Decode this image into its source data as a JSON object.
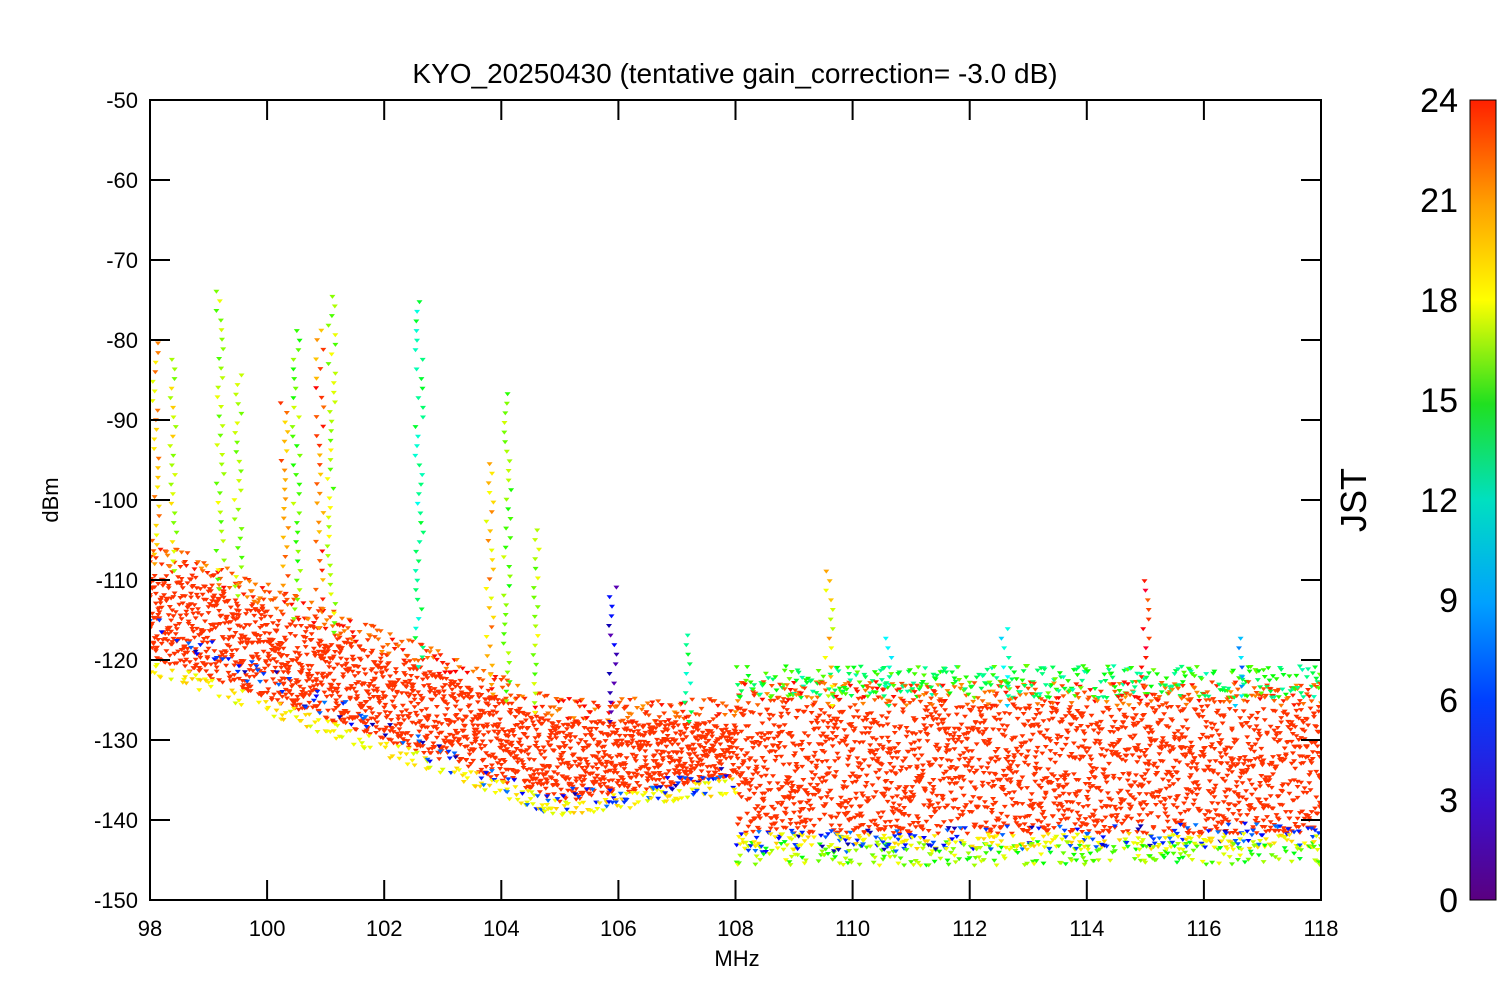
{
  "chart_data": {
    "type": "scatter",
    "title": "KYO_20250430 (tentative gain_correction= -3.0 dB)",
    "xlabel": "MHz",
    "ylabel": "dBm",
    "xlim": [
      98,
      118
    ],
    "ylim": [
      -150,
      -50
    ],
    "x_ticks": [
      "98",
      "100",
      "102",
      "104",
      "106",
      "108",
      "110",
      "112",
      "114",
      "116",
      "118"
    ],
    "y_ticks": [
      "-50",
      "-60",
      "-70",
      "-80",
      "-90",
      "-100",
      "-110",
      "-120",
      "-130",
      "-140",
      "-150"
    ],
    "grid": false,
    "colorbar": {
      "label": "JST",
      "range": [
        0,
        24
      ],
      "ticks": [
        "0",
        "3",
        "6",
        "9",
        "12",
        "15",
        "18",
        "21",
        "24"
      ],
      "colormap": "rainbow"
    },
    "colors": {
      "night": "#3a1fd0",
      "day": "#ff3300"
    },
    "noise_floor": {
      "description_segments": [
        {
          "x": [
            98,
            105
          ],
          "night_floor": [
            -116,
            -139
          ],
          "day_band": [
            [
              -120,
              -108
            ],
            [
              -138,
              -128
            ]
          ]
        },
        {
          "x": [
            105,
            108
          ],
          "night_floor": [
            -138,
            -135
          ],
          "day_band": [
            [
              -138,
              -128
            ],
            [
              -135,
              -128
            ]
          ]
        },
        {
          "x": [
            108,
            118
          ],
          "night_floor": [
            -143,
            -142
          ],
          "day_band": [
            [
              -142,
              -126
            ],
            [
              -142,
              -126
            ]
          ]
        }
      ]
    },
    "peaks": [
      {
        "x": 98.1,
        "max": -80,
        "hour": 19
      },
      {
        "x": 98.4,
        "max": -82,
        "hour": 17
      },
      {
        "x": 99.2,
        "max": -74,
        "hour": 16
      },
      {
        "x": 99.5,
        "max": -84,
        "hour": 16
      },
      {
        "x": 100.3,
        "max": -88,
        "hour": 20
      },
      {
        "x": 100.5,
        "max": -78,
        "hour": 15
      },
      {
        "x": 100.9,
        "max": -79,
        "hour": 21
      },
      {
        "x": 101.1,
        "max": -74,
        "hour": 16
      },
      {
        "x": 102.6,
        "max": -75,
        "hour": 10
      },
      {
        "x": 103.8,
        "max": -95,
        "hour": 19
      },
      {
        "x": 104.1,
        "max": -87,
        "hour": 15
      },
      {
        "x": 104.6,
        "max": -104,
        "hour": 16
      },
      {
        "x": 105.9,
        "max": -110,
        "hour": 1
      },
      {
        "x": 107.2,
        "max": -117,
        "hour": 10
      },
      {
        "x": 109.6,
        "max": -109,
        "hour": 18
      },
      {
        "x": 110.6,
        "max": -117,
        "hour": 9
      },
      {
        "x": 112.6,
        "max": -116,
        "hour": 8
      },
      {
        "x": 115.0,
        "max": -110,
        "hour": 23
      },
      {
        "x": 116.6,
        "max": -117,
        "hour": 6
      }
    ]
  }
}
